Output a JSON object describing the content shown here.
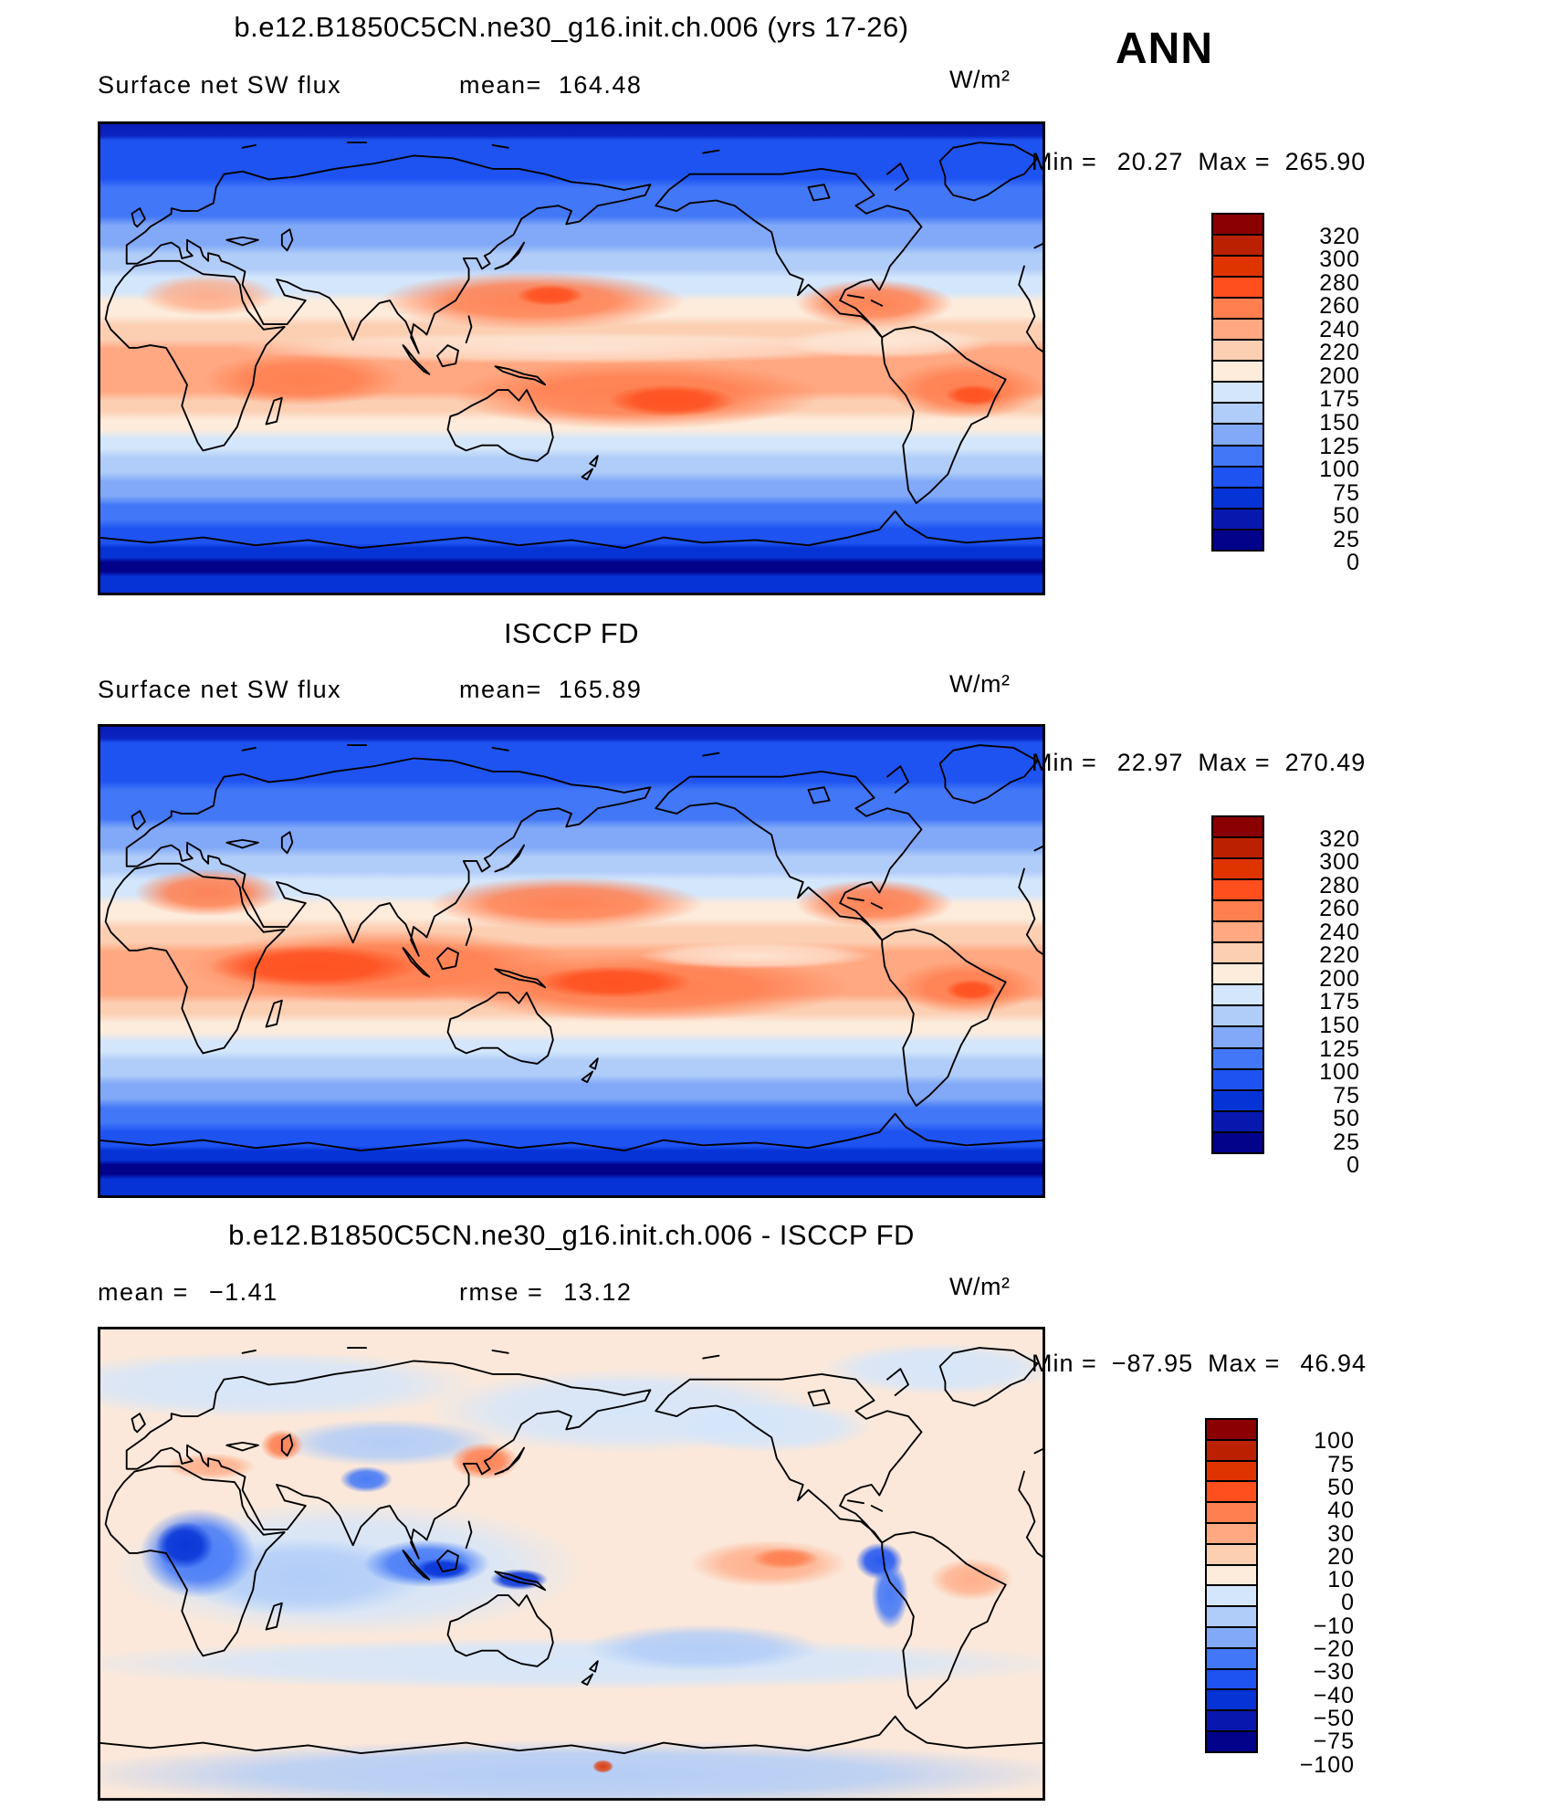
{
  "header": {
    "main_title": "b.e12.B1850C5CN.ne30_g16.init.ch.006 (yrs 17-26)",
    "season": "ANN"
  },
  "display": {
    "panels": [
      {
        "title": "b.e12.B1850C5CN.ne30_g16.init.ch.006 (yrs 17-26)",
        "field": "Surface net SW flux",
        "mean_label": "mean=",
        "mean": "164.48",
        "units": "W/m²",
        "min_label": "Min  =",
        "min": "20.27",
        "max_label": "Max  =",
        "max": "265.90",
        "colorbar_labels": [
          "320",
          "300",
          "280",
          "260",
          "240",
          "220",
          "200",
          "175",
          "150",
          "125",
          "100",
          "75",
          "50",
          "25",
          "0"
        ]
      },
      {
        "title": "ISCCP FD",
        "field": "Surface net SW flux",
        "mean_label": "mean=",
        "mean": "165.89",
        "units": "W/m²",
        "min_label": "Min  =",
        "min": "22.97",
        "max_label": "Max  =",
        "max": "270.49",
        "colorbar_labels": [
          "320",
          "300",
          "280",
          "260",
          "240",
          "220",
          "200",
          "175",
          "150",
          "125",
          "100",
          "75",
          "50",
          "25",
          "0"
        ]
      },
      {
        "title": "b.e12.B1850C5CN.ne30_g16.init.ch.006 - ISCCP FD",
        "mean_label": "mean  =",
        "mean": "−1.41",
        "rmse_label": "rmse  =",
        "rmse": "13.12",
        "units": "W/m²",
        "min_label": "Min  =",
        "min": "−87.95",
        "max_label": "Max  =",
        "max": "46.94",
        "colorbar_labels": [
          "100",
          "75",
          "50",
          "40",
          "30",
          "20",
          "10",
          "0",
          "−10",
          "−20",
          "−30",
          "−40",
          "−50",
          "−75",
          "−100"
        ]
      }
    ]
  },
  "chart_data": {
    "type": "heatmap",
    "projection": "global latitude-longitude filled contour maps",
    "season": "ANN",
    "units": "W/m²",
    "palette_top_to_bottom": [
      "#8B0000",
      "#BB2100",
      "#E03400",
      "#FF4F1F",
      "#FF7F50",
      "#FFA882",
      "#FCCFB3",
      "#FDEBDC",
      "#D4E6FB",
      "#B0CCF8",
      "#81A9F8",
      "#4277F7",
      "#1E53F2",
      "#0633D6",
      "#0818AF",
      "#02028B"
    ],
    "panels": [
      {
        "title": "b.e12.B1850C5CN.ne30_g16.init.ch.006 (yrs 17-26)",
        "variable": "Surface net SW flux",
        "mean": 164.48,
        "min": 20.27,
        "max": 265.9,
        "contour_levels": [
          320,
          300,
          280,
          260,
          240,
          220,
          200,
          175,
          150,
          125,
          100,
          75,
          50,
          25,
          0
        ]
      },
      {
        "title": "ISCCP FD",
        "variable": "Surface net SW flux",
        "mean": 165.89,
        "min": 22.97,
        "max": 270.49,
        "contour_levels": [
          320,
          300,
          280,
          260,
          240,
          220,
          200,
          175,
          150,
          125,
          100,
          75,
          50,
          25,
          0
        ]
      },
      {
        "title": "b.e12.B1850C5CN.ne30_g16.init.ch.006 - ISCCP FD",
        "variable": "Surface net SW flux difference (model minus ISCCP FD)",
        "mean": -1.41,
        "rmse": 13.12,
        "min": -87.95,
        "max": 46.94,
        "contour_levels": [
          100,
          75,
          50,
          40,
          30,
          20,
          10,
          0,
          -10,
          -20,
          -30,
          -40,
          -50,
          -75,
          -100
        ]
      }
    ]
  }
}
